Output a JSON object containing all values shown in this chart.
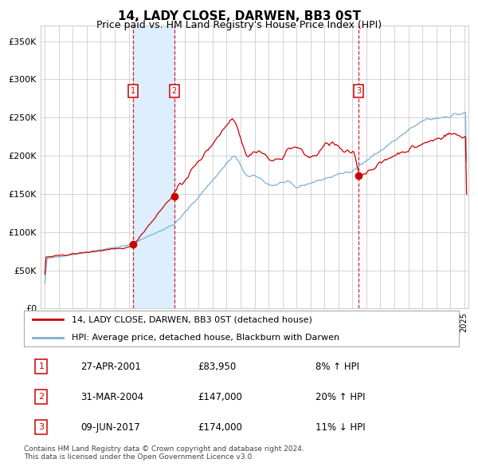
{
  "title": "14, LADY CLOSE, DARWEN, BB3 0ST",
  "subtitle": "Price paid vs. HM Land Registry's House Price Index (HPI)",
  "legend_line1": "14, LADY CLOSE, DARWEN, BB3 0ST (detached house)",
  "legend_line2": "HPI: Average price, detached house, Blackburn with Darwen",
  "footnote1": "Contains HM Land Registry data © Crown copyright and database right 2024.",
  "footnote2": "This data is licensed under the Open Government Licence v3.0.",
  "transactions": [
    {
      "num": 1,
      "date": "27-APR-2001",
      "price": "£83,950",
      "hpi_text": "8% ↑ HPI"
    },
    {
      "num": 2,
      "date": "31-MAR-2004",
      "price": "£147,000",
      "hpi_text": "20% ↑ HPI"
    },
    {
      "num": 3,
      "date": "09-JUN-2017",
      "price": "£174,000",
      "hpi_text": "11% ↓ HPI"
    }
  ],
  "transaction_dates_decimal": [
    2001.32,
    2004.25,
    2017.44
  ],
  "transaction_prices": [
    83950,
    147000,
    174000
  ],
  "vline_color": "#cc0000",
  "shade_color": "#ddeeff",
  "marker_color": "#cc0000",
  "hpi_line_color": "#7bafd4",
  "price_line_color": "#cc0000",
  "ylim": [
    0,
    370000
  ],
  "yticks": [
    0,
    50000,
    100000,
    150000,
    200000,
    250000,
    300000,
    350000
  ],
  "ytick_labels": [
    "£0",
    "£50K",
    "£100K",
    "£150K",
    "£200K",
    "£250K",
    "£300K",
    "£350K"
  ],
  "xlim_start": 1994.7,
  "xlim_end": 2025.3,
  "grid_color": "#cccccc",
  "background_color": "#ffffff",
  "box_color": "#cc0000",
  "title_fontsize": 11,
  "subtitle_fontsize": 9
}
